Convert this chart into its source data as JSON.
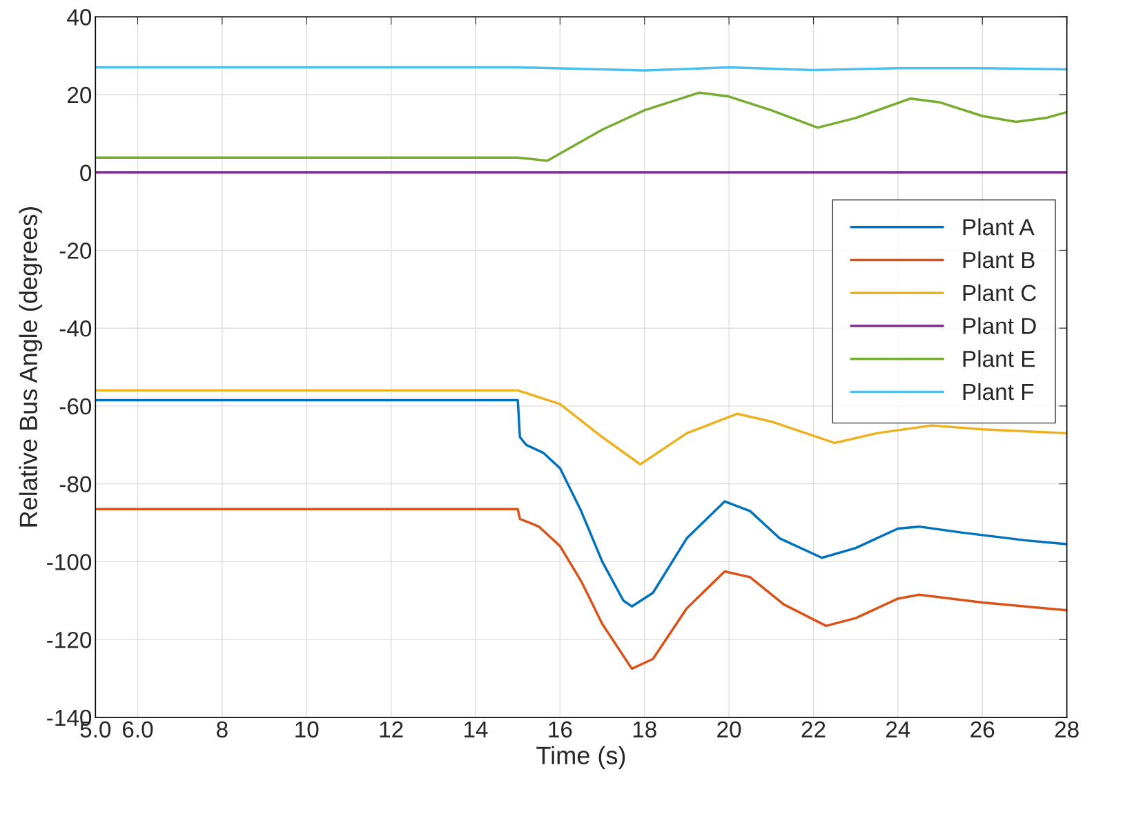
{
  "chart_data": {
    "type": "line",
    "xlabel": "Time (s)",
    "ylabel": "Relative Bus Angle (degrees)",
    "xlim": [
      5,
      28
    ],
    "ylim": [
      -140,
      40
    ],
    "xticks": [
      {
        "value": 5,
        "label": "5.0"
      },
      {
        "value": 6,
        "label": "6.0"
      },
      8,
      10,
      12,
      14,
      16,
      18,
      20,
      22,
      24,
      26,
      28
    ],
    "yticks": [
      -140,
      -120,
      -100,
      -80,
      -60,
      -40,
      -20,
      0,
      20,
      40
    ],
    "grid": true,
    "legend": "right",
    "line_style": "solid",
    "series": [
      {
        "name": "Plant A",
        "color": "#0072bd",
        "x": [
          5,
          15,
          15.05,
          15.2,
          15.6,
          16,
          16.5,
          17,
          17.5,
          17.7,
          18.2,
          19,
          19.9,
          20.5,
          21.2,
          22.2,
          23,
          24,
          24.5,
          25.5,
          27,
          28
        ],
        "values": [
          -58.5,
          -58.5,
          -68,
          -70,
          -72,
          -76,
          -87,
          -100,
          -110,
          -111.5,
          -108,
          -94,
          -84.5,
          -87,
          -94,
          -99,
          -96.5,
          -91.5,
          -91,
          -92.5,
          -94.5,
          -95.5
        ]
      },
      {
        "name": "Plant B",
        "color": "#d95319",
        "x": [
          5,
          15,
          15.05,
          15.5,
          16,
          16.5,
          17,
          17.7,
          18.2,
          19,
          19.9,
          20.5,
          21.3,
          22.3,
          23,
          24,
          24.5,
          26,
          28
        ],
        "values": [
          -86.5,
          -86.5,
          -89,
          -91,
          -96,
          -105,
          -116,
          -127.5,
          -125,
          -112,
          -102.5,
          -104,
          -111,
          -116.5,
          -114.5,
          -109.5,
          -108.5,
          -110.5,
          -112.5
        ]
      },
      {
        "name": "Plant C",
        "color": "#edb120",
        "x": [
          5,
          15,
          16,
          17,
          17.9,
          19,
          20.2,
          21,
          22.5,
          23.5,
          24.8,
          26,
          28
        ],
        "values": [
          -56,
          -56,
          -59.5,
          -68,
          -75,
          -67,
          -62,
          -64,
          -69.5,
          -67,
          -65,
          -66,
          -67
        ]
      },
      {
        "name": "Plant D",
        "color": "#7e2f8e",
        "x": [
          5,
          28
        ],
        "values": [
          0,
          0
        ]
      },
      {
        "name": "Plant E",
        "color": "#77ac30",
        "x": [
          5,
          15,
          15.7,
          17,
          18,
          19.3,
          20,
          21,
          22.1,
          23,
          24.3,
          25,
          26,
          26.8,
          27.5,
          28
        ],
        "values": [
          3.8,
          3.8,
          3,
          11,
          16,
          20.5,
          19.5,
          16,
          11.5,
          14,
          19,
          18,
          14.5,
          13,
          14,
          15.5
        ]
      },
      {
        "name": "Plant F",
        "color": "#4dbeee",
        "x": [
          5,
          15,
          18,
          20,
          22,
          24,
          26,
          28
        ],
        "values": [
          27,
          27,
          26.2,
          27,
          26.3,
          26.8,
          26.8,
          26.5
        ]
      }
    ]
  }
}
